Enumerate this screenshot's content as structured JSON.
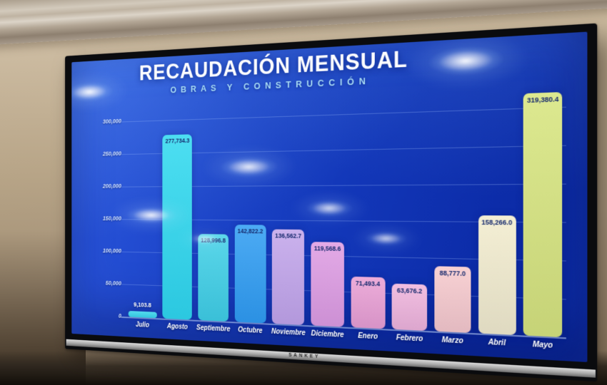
{
  "scene": {
    "tv_brand": "SANKEY"
  },
  "chart_data": {
    "type": "bar",
    "title": "RECAUDACIÓN MENSUAL",
    "subtitle": "OBRAS Y CONSTRUCCIÓN",
    "categories": [
      "Julio",
      "Agosto",
      "Septiembre",
      "Octubre",
      "Noviembre",
      "Diciembre",
      "Enero",
      "Febrero",
      "Marzo",
      "Abril",
      "Mayo"
    ],
    "values": [
      9103.8,
      277734.3,
      128996.8,
      142822.2,
      136562.7,
      119568.6,
      71493.4,
      63676.2,
      88777.0,
      158266.0,
      319380.4
    ],
    "value_labels": [
      "9,103.8",
      "277,734.3",
      "128,996.8",
      "142,822.2",
      "136,562.7",
      "119,568.6",
      "71,493.4",
      "63,676.2",
      "88,777.0",
      "158,266.0",
      "319,380.4"
    ],
    "bar_colors": [
      "#38d6ec",
      "#2fd9ef",
      "#3fd0e6",
      "#2f9df2",
      "#c2a5ea",
      "#de9ce2",
      "#e99fd3",
      "#efb4db",
      "#f6c9cc",
      "#f2eccd",
      "#d7e57d"
    ],
    "xlabel": "",
    "ylabel": "",
    "ylim": [
      0,
      300000
    ],
    "yticks": [
      0,
      50000,
      100000,
      150000,
      200000,
      250000,
      300000
    ],
    "ytick_labels": [
      "0",
      "50,000",
      "100,000",
      "150,000",
      "200,000",
      "250,000",
      "300,000"
    ],
    "grid": true,
    "legend": null
  }
}
